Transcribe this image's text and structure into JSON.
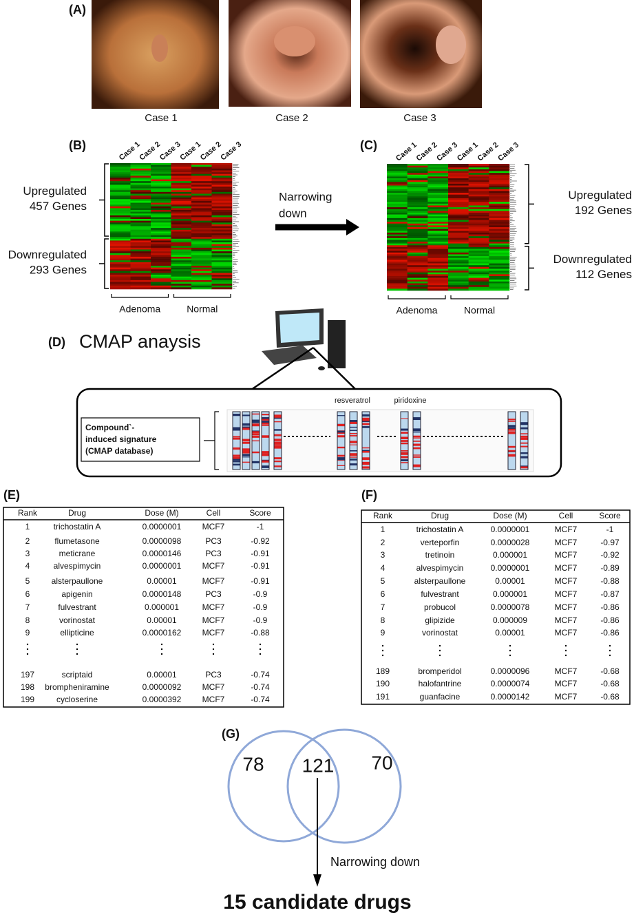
{
  "panels": {
    "A": {
      "label": "(A)",
      "captions": [
        "Case 1",
        "Case 2",
        "Case 3"
      ]
    },
    "B": {
      "label": "(B)",
      "columns": [
        "Case 1",
        "Case 2",
        "Case 3",
        "Case 1",
        "Case 2",
        "Case 3"
      ],
      "up": [
        "Upregulated",
        "457 Genes"
      ],
      "down": [
        "Downregulated",
        "293 Genes"
      ],
      "groups": [
        "Adenoma",
        "Normal"
      ]
    },
    "arrow": [
      "Narrowing",
      "down"
    ],
    "C": {
      "label": "(C)",
      "columns": [
        "Case 1",
        "Case 2",
        "Case 3",
        "Case 1",
        "Case 2",
        "Case 3"
      ],
      "up": [
        "Upregulated",
        "192 Genes"
      ],
      "down": [
        "Downregulated",
        "112 Genes"
      ],
      "groups": [
        "Adenoma",
        "Normal"
      ]
    },
    "D": {
      "label": "(D)",
      "title": "CMAP anaysis",
      "box": [
        "Compound`-",
        "induced signature",
        "(CMAP database)"
      ],
      "drugs": [
        "resveratrol",
        "piridoxine"
      ]
    },
    "E": {
      "label": "(E)",
      "header": [
        "Rank",
        "Drug",
        "Dose (M)",
        "Cell",
        "Score"
      ],
      "rows": [
        [
          "1",
          "trichostatin A",
          "0.0000001",
          "MCF7",
          "-1"
        ],
        [
          "2",
          "flumetasone",
          "0.0000098",
          "PC3",
          "-0.92"
        ],
        [
          "3",
          "meticrane",
          "0.0000146",
          "PC3",
          "-0.91"
        ],
        [
          "4",
          "alvespimycin",
          "0.0000001",
          "MCF7",
          "-0.91"
        ],
        [
          "5",
          "alsterpaullone",
          "0.00001",
          "MCF7",
          "-0.91"
        ],
        [
          "6",
          "apigenin",
          "0.0000148",
          "PC3",
          "-0.9"
        ],
        [
          "7",
          "fulvestrant",
          "0.000001",
          "MCF7",
          "-0.9"
        ],
        [
          "8",
          "vorinostat",
          "0.00001",
          "MCF7",
          "-0.9"
        ],
        [
          "9",
          "ellipticine",
          "0.0000162",
          "MCF7",
          "-0.88"
        ],
        [
          "197",
          "scriptaid",
          "0.00001",
          "PC3",
          "-0.74"
        ],
        [
          "198",
          "brompheniramine",
          "0.0000092",
          "MCF7",
          "-0.74"
        ],
        [
          "199",
          "cycloserine",
          "0.0000392",
          "MCF7",
          "-0.74"
        ]
      ]
    },
    "F": {
      "label": "(F)",
      "header": [
        "Rank",
        "Drug",
        "Dose (M)",
        "Cell",
        "Score"
      ],
      "rows": [
        [
          "1",
          "trichostatin A",
          "0.0000001",
          "MCF7",
          "-1"
        ],
        [
          "2",
          "verteporfin",
          "0.0000028",
          "MCF7",
          "-0.97"
        ],
        [
          "3",
          "tretinoin",
          "0.000001",
          "MCF7",
          "-0.92"
        ],
        [
          "4",
          "alvespimycin",
          "0.0000001",
          "MCF7",
          "-0.89"
        ],
        [
          "5",
          "alsterpaullone",
          "0.00001",
          "MCF7",
          "-0.88"
        ],
        [
          "6",
          "fulvestrant",
          "0.000001",
          "MCF7",
          "-0.87"
        ],
        [
          "7",
          "probucol",
          "0.0000078",
          "MCF7",
          "-0.86"
        ],
        [
          "8",
          "glipizide",
          "0.000009",
          "MCF7",
          "-0.86"
        ],
        [
          "9",
          "vorinostat",
          "0.00001",
          "MCF7",
          "-0.86"
        ],
        [
          "189",
          "bromperidol",
          "0.0000096",
          "MCF7",
          "-0.68"
        ],
        [
          "190",
          "halofantrine",
          "0.0000074",
          "MCF7",
          "-0.68"
        ],
        [
          "191",
          "guanfacine",
          "0.0000142",
          "MCF7",
          "-0.68"
        ]
      ]
    },
    "G": {
      "label": "(G)",
      "left": 78,
      "center": 121,
      "right": 70,
      "note": "Narrowing down",
      "result": "15 candidate drugs"
    }
  }
}
